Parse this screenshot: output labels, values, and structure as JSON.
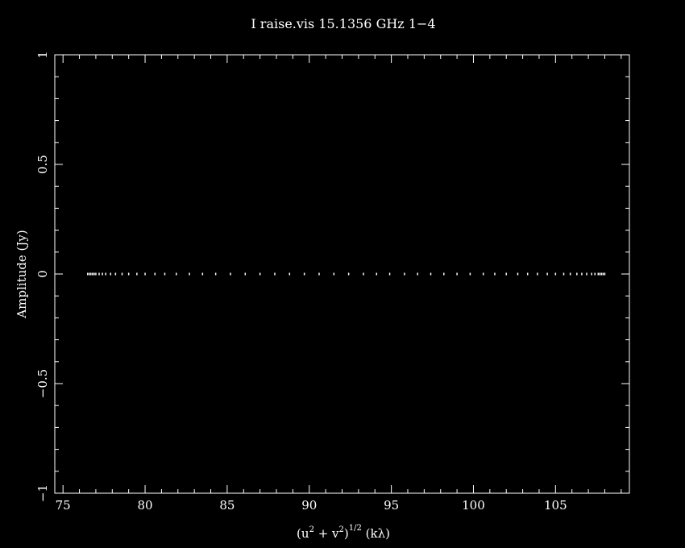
{
  "chart_data": {
    "type": "scatter",
    "title": "I raise.vis 15.1356 GHz   1−4",
    "xlabel_parts": {
      "open": "(u",
      "sup1": "2",
      "plus": " + v",
      "sup2": "2",
      "close": ")",
      "sup3": "1/2",
      "unit": " (kλ)"
    },
    "ylabel": "Amplitude (Jy)",
    "xlim": [
      74.5,
      109.5
    ],
    "ylim": [
      -1,
      1
    ],
    "x_ticks": [
      75,
      80,
      85,
      90,
      95,
      100,
      105
    ],
    "x_tick_labels": [
      "75",
      "80",
      "85",
      "90",
      "95",
      "100",
      "105"
    ],
    "y_ticks": [
      -1,
      -0.5,
      0,
      0.5,
      1
    ],
    "y_tick_labels": [
      "−1",
      "−0.5",
      "0",
      "0.5",
      "1"
    ],
    "x_minor_step": 1,
    "y_minor_step": 0.1,
    "grid": false,
    "marker_color": "#ffffff",
    "background_color": "#000000",
    "series": [
      {
        "x": [
          76.5,
          76.6,
          76.7,
          76.8,
          76.9,
          77.0,
          77.2,
          77.4,
          77.6,
          77.9,
          78.2,
          78.6,
          79.0,
          79.5,
          80.0,
          80.6,
          81.2,
          81.9,
          82.7,
          83.5,
          84.3,
          85.2,
          86.1,
          87.0,
          87.9,
          88.8,
          89.7,
          90.6,
          91.5,
          92.4,
          93.3,
          94.1,
          94.9,
          95.8,
          96.6,
          97.4,
          98.2,
          99.0,
          99.8,
          100.6,
          101.3,
          102.0,
          102.7,
          103.3,
          103.9,
          104.5,
          105.0,
          105.5,
          105.9,
          106.3,
          106.6,
          106.9,
          107.2,
          107.4,
          107.6,
          107.7,
          107.8,
          107.9,
          108.0
        ],
        "y": [
          0,
          0,
          0,
          0,
          0,
          0,
          0,
          0,
          0,
          0,
          0,
          0,
          0,
          0,
          0,
          0,
          0,
          0,
          0,
          0,
          0,
          0,
          0,
          0,
          0,
          0,
          0,
          0,
          0,
          0,
          0,
          0,
          0,
          0,
          0,
          0,
          0,
          0,
          0,
          0,
          0,
          0,
          0,
          0,
          0,
          0,
          0,
          0,
          0,
          0,
          0,
          0,
          0,
          0,
          0,
          0,
          0,
          0,
          0
        ]
      }
    ]
  }
}
